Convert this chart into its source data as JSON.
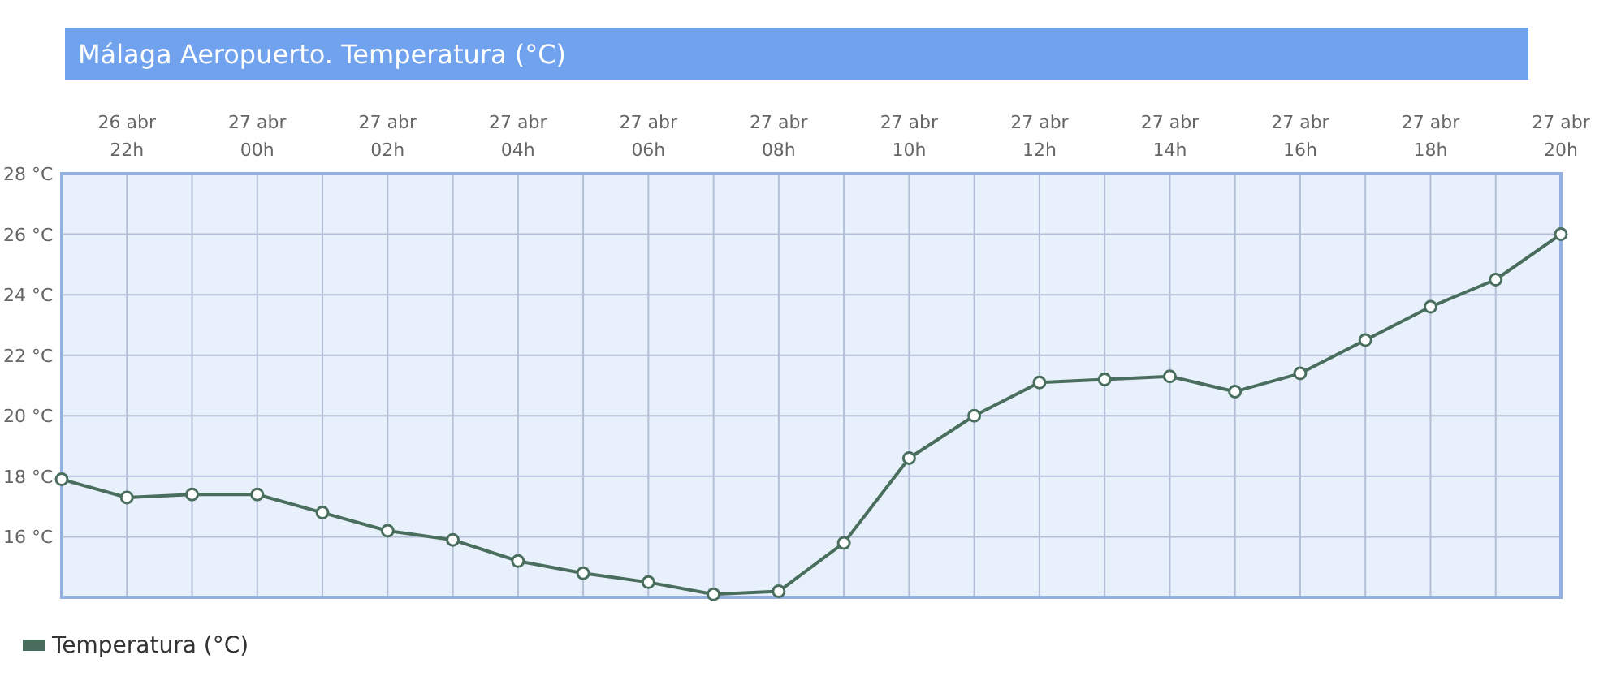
{
  "chart_data": {
    "type": "line",
    "title": "Málaga Aeropuerto. Temperatura (°C)",
    "categories": [
      null,
      "26 abr\n22h",
      null,
      "27 abr\n00h",
      null,
      "27 abr\n02h",
      null,
      "27 abr\n04h",
      null,
      "27 abr\n06h",
      null,
      "27 abr\n08h",
      null,
      "27 abr\n10h",
      null,
      "27 abr\n12h",
      null,
      "27 abr\n14h",
      null,
      "27 abr\n16h",
      null,
      "27 abr\n18h",
      null,
      "27 abr\n20h"
    ],
    "series": [
      {
        "name": "Temperatura (°C)",
        "color": "#4a6e5e",
        "values": [
          17.9,
          17.3,
          17.4,
          17.4,
          16.8,
          16.2,
          15.9,
          15.2,
          14.8,
          14.5,
          14.1,
          14.2,
          15.8,
          18.6,
          20.0,
          21.1,
          21.2,
          21.3,
          20.8,
          21.4,
          22.5,
          23.6,
          24.5,
          26.0
        ]
      }
    ],
    "ylim": [
      14,
      28
    ],
    "yticks": [
      {
        "value": 16,
        "label": "16 °C"
      },
      {
        "value": 18,
        "label": "18 °C"
      },
      {
        "value": 20,
        "label": "20 °C"
      },
      {
        "value": 22,
        "label": "22 °C"
      },
      {
        "value": 24,
        "label": "24 °C"
      },
      {
        "value": 26,
        "label": "26 °C"
      },
      {
        "value": 28,
        "label": "28 °C"
      }
    ],
    "grid": true,
    "legend": "bottom left",
    "marker": "circle",
    "line_style": "solid"
  }
}
